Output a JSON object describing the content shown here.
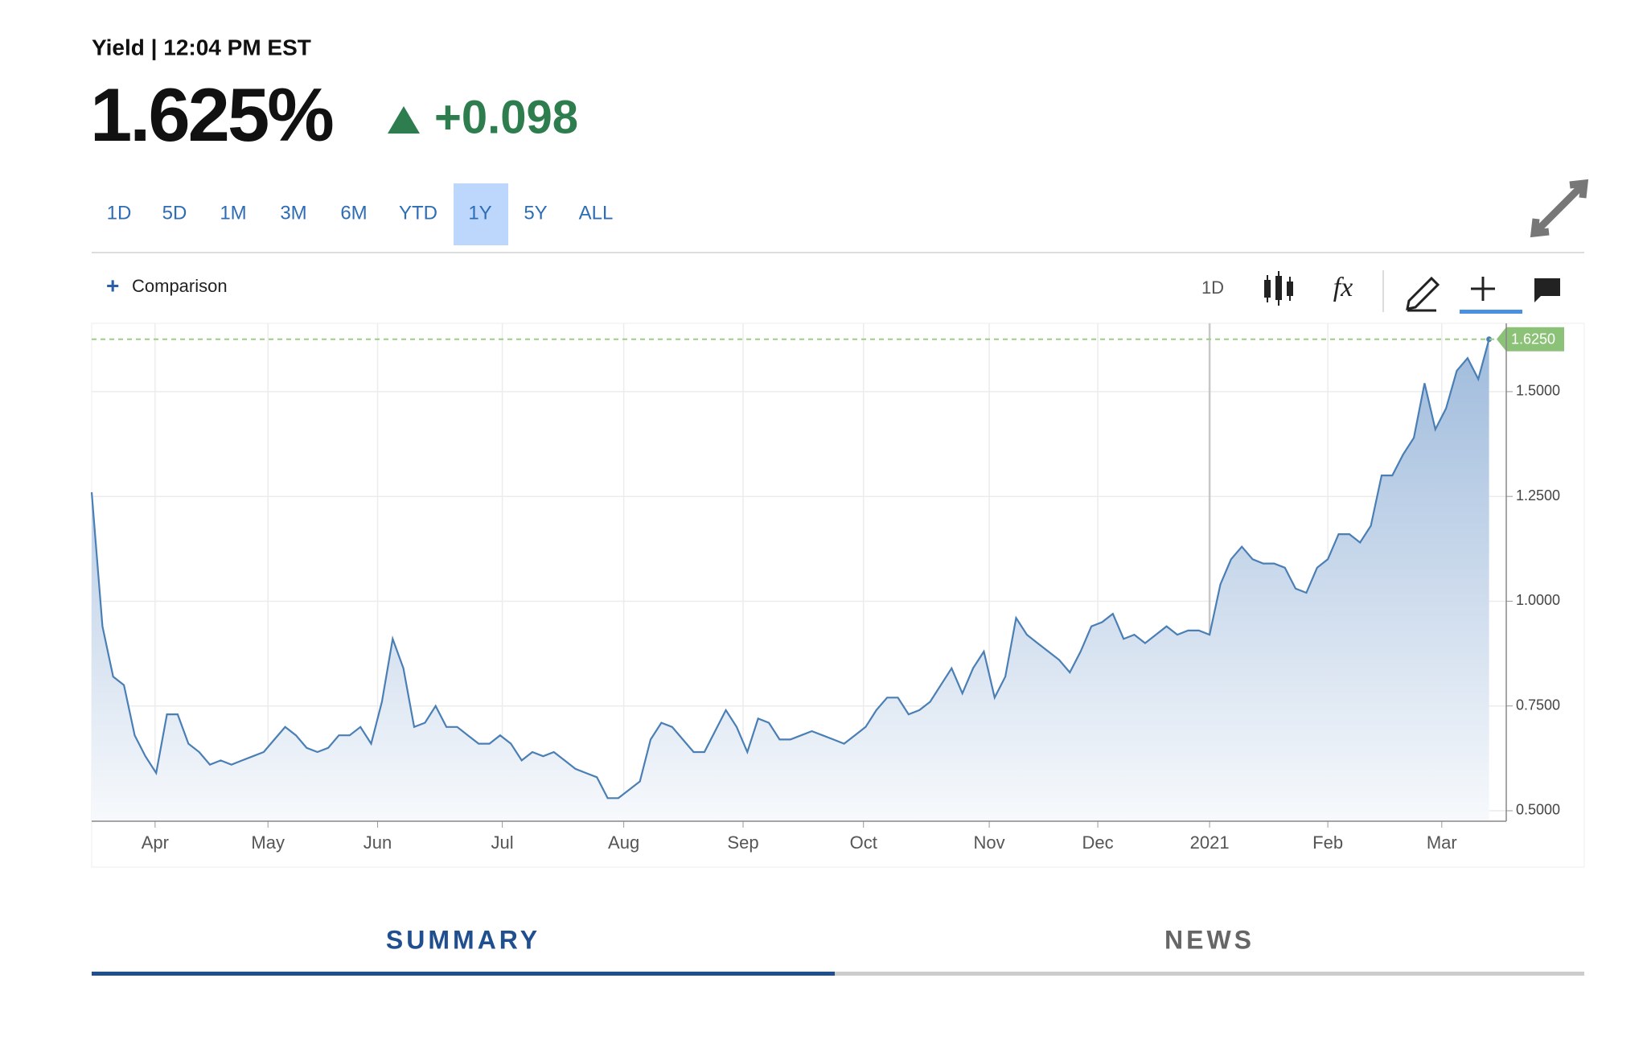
{
  "header": {
    "title": "Yield | 12:04 PM EST",
    "price": "1.625%",
    "change": "+0.098"
  },
  "range_buttons": [
    "1D",
    "5D",
    "1M",
    "3M",
    "6M",
    "YTD",
    "1Y",
    "5Y",
    "ALL"
  ],
  "selected_range": "1Y",
  "toolbar": {
    "comparison": "Comparison",
    "interval": "1D"
  },
  "tabs": [
    "SUMMARY",
    "NEWS"
  ],
  "chart_data": {
    "type": "line",
    "series": [
      {
        "name": "Yield",
        "color": "#4a7fb5",
        "values": [
          1.26,
          0.94,
          0.82,
          0.8,
          0.68,
          0.63,
          0.59,
          0.73,
          0.73,
          0.66,
          0.64,
          0.61,
          0.62,
          0.61,
          0.62,
          0.63,
          0.64,
          0.67,
          0.7,
          0.68,
          0.65,
          0.64,
          0.65,
          0.68,
          0.68,
          0.7,
          0.66,
          0.76,
          0.91,
          0.84,
          0.7,
          0.71,
          0.75,
          0.7,
          0.7,
          0.68,
          0.66,
          0.66,
          0.68,
          0.66,
          0.62,
          0.64,
          0.63,
          0.64,
          0.62,
          0.6,
          0.59,
          0.58,
          0.53,
          0.53,
          0.55,
          0.57,
          0.67,
          0.71,
          0.7,
          0.67,
          0.64,
          0.64,
          0.69,
          0.74,
          0.7,
          0.64,
          0.72,
          0.71,
          0.67,
          0.67,
          0.68,
          0.69,
          0.68,
          0.67,
          0.66,
          0.68,
          0.7,
          0.74,
          0.77,
          0.77,
          0.73,
          0.74,
          0.76,
          0.8,
          0.84,
          0.78,
          0.84,
          0.88,
          0.77,
          0.82,
          0.96,
          0.92,
          0.9,
          0.88,
          0.86,
          0.83,
          0.88,
          0.94,
          0.95,
          0.97,
          0.91,
          0.92,
          0.9,
          0.92,
          0.94,
          0.92,
          0.93,
          0.93,
          0.92,
          1.04,
          1.1,
          1.13,
          1.1,
          1.09,
          1.09,
          1.08,
          1.03,
          1.02,
          1.08,
          1.1,
          1.16,
          1.16,
          1.14,
          1.18,
          1.3,
          1.3,
          1.35,
          1.39,
          1.52,
          1.41,
          1.46,
          1.55,
          1.58,
          1.53,
          1.625
        ]
      }
    ],
    "xlim": [
      0,
      131.6
    ],
    "xticks": [
      {
        "value": 5.9,
        "label": "Apr"
      },
      {
        "value": 16.4,
        "label": "May"
      },
      {
        "value": 26.6,
        "label": "Jun"
      },
      {
        "value": 38.2,
        "label": "Jul"
      },
      {
        "value": 49.5,
        "label": "Aug"
      },
      {
        "value": 60.6,
        "label": "Sep"
      },
      {
        "value": 71.8,
        "label": "Oct"
      },
      {
        "value": 83.5,
        "label": "Nov"
      },
      {
        "value": 93.6,
        "label": "Dec"
      },
      {
        "value": 104.0,
        "label": "2021"
      },
      {
        "value": 115.0,
        "label": "Feb"
      },
      {
        "value": 125.6,
        "label": "Mar"
      }
    ],
    "ylim": [
      0.475,
      1.663
    ],
    "yticks": [
      {
        "value": 0.5,
        "label": "0.5000"
      },
      {
        "value": 0.75,
        "label": "0.7500"
      },
      {
        "value": 1.0,
        "label": "1.0000"
      },
      {
        "value": 1.25,
        "label": "1.2500"
      },
      {
        "value": 1.5,
        "label": "1.5000"
      }
    ],
    "last_value": {
      "value": 1.625,
      "label": "1.6250"
    },
    "grid": true
  }
}
